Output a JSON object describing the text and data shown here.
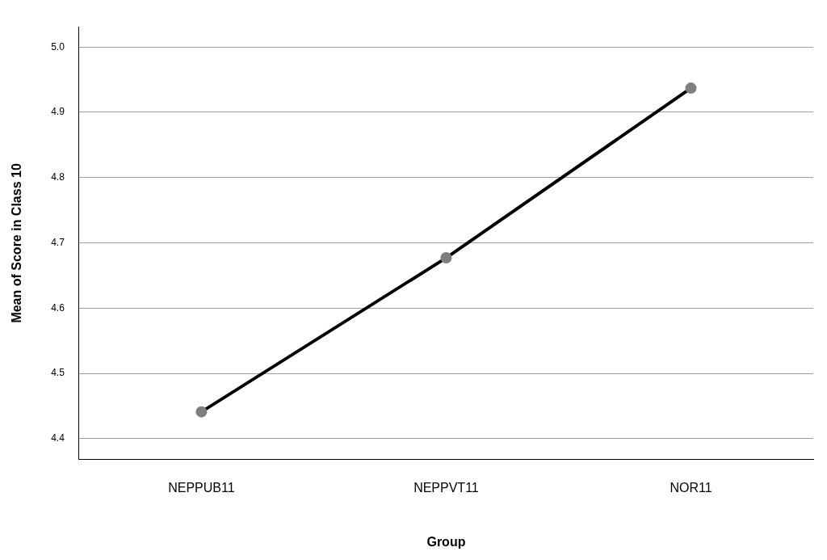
{
  "chart_data": {
    "type": "line",
    "xlabel": "Group",
    "ylabel": "Mean of Score in Class 10",
    "categories": [
      "NEPPUB11",
      "NEPPVT11",
      "NOR11"
    ],
    "series": [
      {
        "color": "#000000",
        "colors": [
          "#7f7f7f",
          "#7f7f7f",
          "#7f7f7f"
        ],
        "values": [
          4.441,
          4.677,
          4.937
        ]
      }
    ],
    "ylim": [
      4.368,
      5.031
    ],
    "yticks": [
      4.4,
      4.5,
      4.6,
      4.7,
      4.8,
      4.9,
      {
        "value": 5,
        "label": "5.0"
      }
    ],
    "grid": "y",
    "marker": "circle",
    "line_style": "solid",
    "legend": false
  }
}
